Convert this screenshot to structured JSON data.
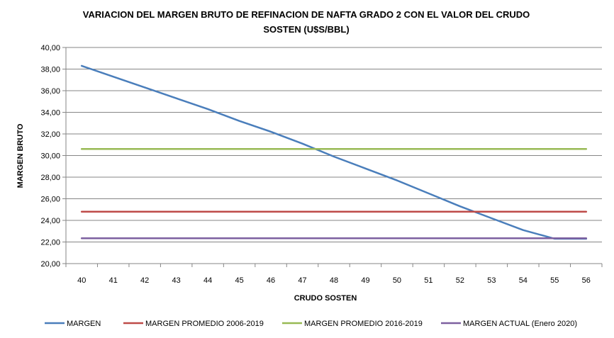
{
  "chart_data": {
    "type": "line",
    "title_line1": "VARIACION DEL MARGEN BRUTO DE REFINACION DE NAFTA GRADO 2 CON EL VALOR DEL CRUDO",
    "title_line2": "SOSTEN (U$S/BBL)",
    "xlabel": "CRUDO SOSTEN",
    "ylabel": "MARGEN BRUTO",
    "categories": [
      "40",
      "41",
      "42",
      "43",
      "44",
      "45",
      "46",
      "47",
      "48",
      "49",
      "50",
      "51",
      "52",
      "53",
      "54",
      "55",
      "56"
    ],
    "ylim": [
      20,
      40
    ],
    "yticks": [
      "20,00",
      "22,00",
      "24,00",
      "26,00",
      "28,00",
      "30,00",
      "32,00",
      "34,00",
      "36,00",
      "38,00",
      "40,00"
    ],
    "grid": "horizontal",
    "legend_position": "bottom",
    "series": [
      {
        "name": "MARGEN",
        "color": "#4A7EBB",
        "values": [
          38.3,
          37.3,
          36.3,
          35.3,
          34.3,
          33.2,
          32.2,
          31.1,
          29.9,
          28.8,
          27.7,
          26.5,
          25.3,
          24.2,
          23.1,
          22.3,
          22.3
        ]
      },
      {
        "name": "MARGEN PROMEDIO 2006-2019",
        "color": "#BE4B48",
        "values": [
          24.8,
          24.8,
          24.8,
          24.8,
          24.8,
          24.8,
          24.8,
          24.8,
          24.8,
          24.8,
          24.8,
          24.8,
          24.8,
          24.8,
          24.8,
          24.8,
          24.8
        ]
      },
      {
        "name": "MARGEN PROMEDIO 2016-2019",
        "color": "#98B954",
        "values": [
          30.6,
          30.6,
          30.6,
          30.6,
          30.6,
          30.6,
          30.6,
          30.6,
          30.6,
          30.6,
          30.6,
          30.6,
          30.6,
          30.6,
          30.6,
          30.6,
          30.6
        ]
      },
      {
        "name": "MARGEN ACTUAL (Enero 2020)",
        "color": "#7D60A0",
        "values": [
          22.35,
          22.35,
          22.35,
          22.35,
          22.35,
          22.35,
          22.35,
          22.35,
          22.35,
          22.35,
          22.35,
          22.35,
          22.35,
          22.35,
          22.35,
          22.35,
          22.35
        ]
      }
    ]
  }
}
